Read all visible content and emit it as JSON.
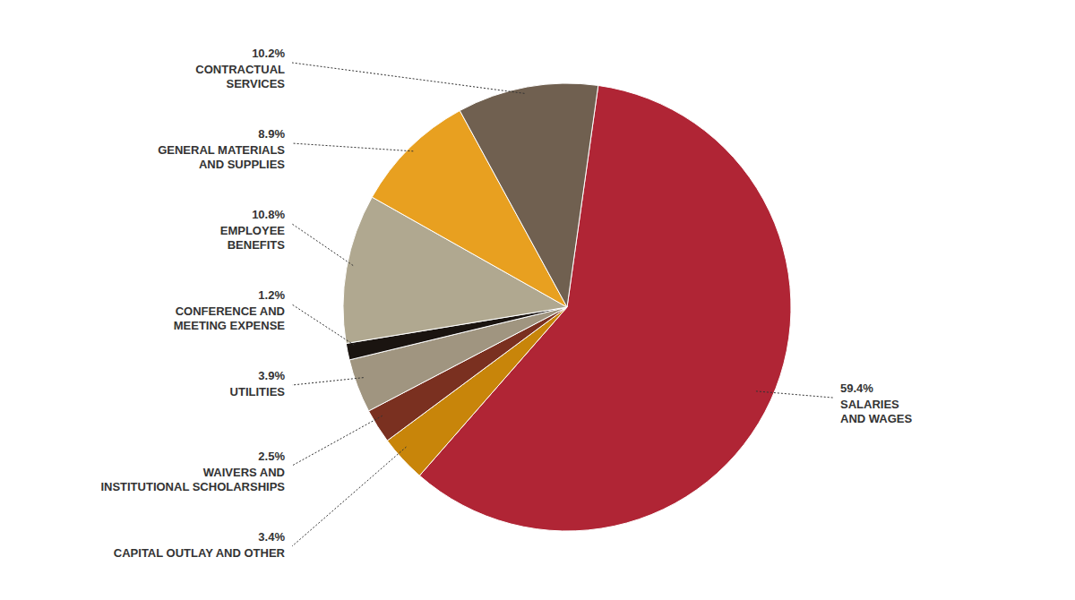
{
  "chart_data": {
    "type": "pie",
    "categories": [
      "SALARIES\nAND WAGES",
      "CAPITAL OUTLAY AND OTHER",
      "WAIVERS AND\nINSTITUTIONAL SCHOLARSHIPS",
      "UTILITIES",
      "CONFERENCE AND\nMEETING EXPENSE",
      "EMPLOYEE\nBENEFITS",
      "GENERAL MATERIALS\nAND SUPPLIES",
      "CONTRACTUAL\nSERVICES"
    ],
    "values": [
      59.4,
      3.4,
      2.5,
      3.9,
      1.2,
      10.8,
      8.9,
      10.2
    ],
    "value_labels": [
      "59.4%",
      "3.4%",
      "2.5%",
      "3.9%",
      "1.2%",
      "10.8%",
      "8.9%",
      "10.2%"
    ],
    "colors": [
      "#b02535",
      "#c8850a",
      "#7a3020",
      "#a09580",
      "#1a1410",
      "#b0a890",
      "#e8a020",
      "#706050"
    ]
  }
}
